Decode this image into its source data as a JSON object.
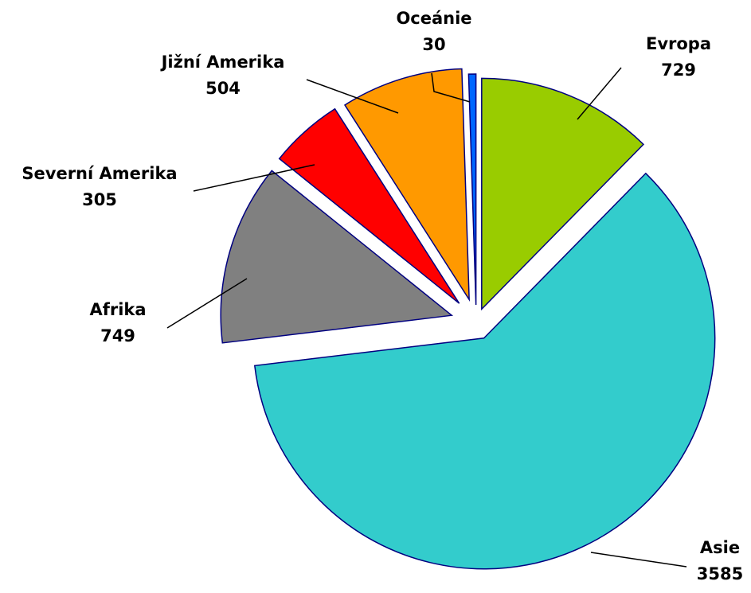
{
  "chart_data": {
    "type": "pie",
    "title": "",
    "start": "12 o'clock, clockwise",
    "exploded": true,
    "slices": [
      {
        "name": "Evropa",
        "value": 729,
        "color": "#99cc00"
      },
      {
        "name": "Asie",
        "value": 3585,
        "color": "#33cccc"
      },
      {
        "name": "Afrika",
        "value": 749,
        "color": "#808080"
      },
      {
        "name": "Severní Amerika",
        "value": 305,
        "color": "#ff0000"
      },
      {
        "name": "Jižní Amerika",
        "value": 504,
        "color": "#ff9900"
      },
      {
        "name": "Oceánie",
        "value": 30,
        "color": "#0066ff"
      }
    ]
  }
}
